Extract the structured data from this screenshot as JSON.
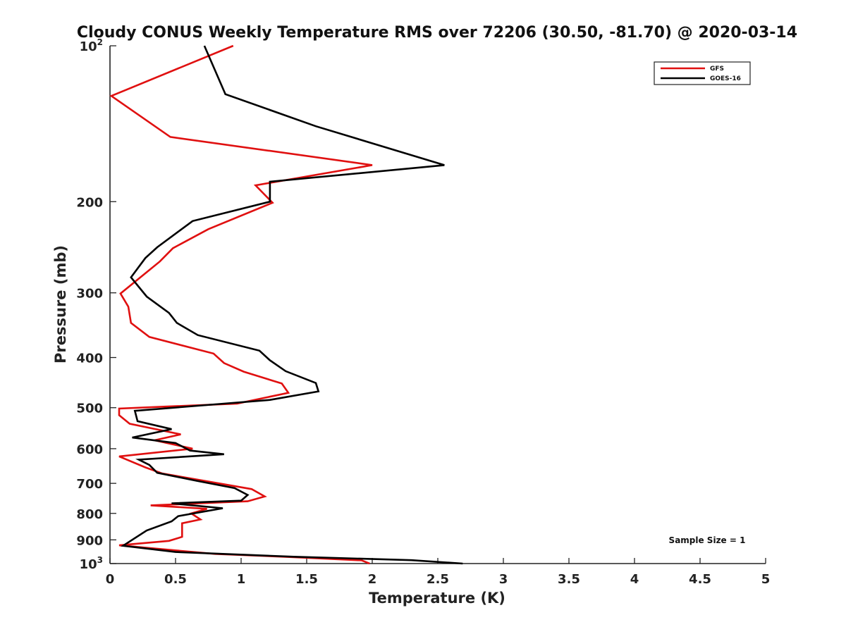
{
  "chart_data": {
    "type": "line",
    "title": "Cloudy CONUS Weekly Temperature RMS over 72206 (30.50, -81.70) @ 2020-03-14",
    "xlabel": "Temperature (K)",
    "ylabel": "Pressure (mb)",
    "xlim": [
      0,
      5
    ],
    "ylim": [
      100,
      1000
    ],
    "y_scale": "log",
    "y_reversed": true,
    "x_ticks": [
      "0",
      "0.5",
      "1",
      "1.5",
      "2",
      "2.5",
      "3",
      "3.5",
      "4",
      "4.5",
      "5"
    ],
    "y_ticks": [
      {
        "value": 100,
        "label": "10",
        "sup": "2"
      },
      {
        "value": 200,
        "label": "200"
      },
      {
        "value": 300,
        "label": "300"
      },
      {
        "value": 400,
        "label": "400"
      },
      {
        "value": 500,
        "label": "500"
      },
      {
        "value": 600,
        "label": "600"
      },
      {
        "value": 700,
        "label": "700"
      },
      {
        "value": 800,
        "label": "800"
      },
      {
        "value": 900,
        "label": "900"
      },
      {
        "value": 1000,
        "label": "10",
        "sup": "3"
      }
    ],
    "grid": false,
    "legend_position": "top-right",
    "annotation": "Sample Size = 1",
    "series": [
      {
        "name": "GFS",
        "color": "#e01010",
        "points": [
          [
            0.94,
            100
          ],
          [
            0.01,
            125
          ],
          [
            0.46,
            150
          ],
          [
            2.0,
            170
          ],
          [
            1.11,
            186
          ],
          [
            1.24,
            201
          ],
          [
            0.75,
            226
          ],
          [
            0.48,
            246
          ],
          [
            0.38,
            261
          ],
          [
            0.08,
            301
          ],
          [
            0.14,
            319
          ],
          [
            0.16,
            343
          ],
          [
            0.3,
            365
          ],
          [
            0.79,
            393
          ],
          [
            0.87,
            410
          ],
          [
            1.02,
            426
          ],
          [
            1.31,
            449
          ],
          [
            1.36,
            468
          ],
          [
            0.97,
            491
          ],
          [
            0.07,
            502
          ],
          [
            0.07,
            517
          ],
          [
            0.15,
            537
          ],
          [
            0.54,
            563
          ],
          [
            0.34,
            578
          ],
          [
            0.63,
            600
          ],
          [
            0.07,
            621
          ],
          [
            0.27,
            652
          ],
          [
            0.4,
            670
          ],
          [
            1.08,
            718
          ],
          [
            1.18,
            742
          ],
          [
            1.05,
            758
          ],
          [
            0.31,
            772
          ],
          [
            0.74,
            784
          ],
          [
            0.62,
            800
          ],
          [
            0.69,
            822
          ],
          [
            0.55,
            836
          ],
          [
            0.55,
            888
          ],
          [
            0.45,
            904
          ],
          [
            0.07,
            922
          ],
          [
            0.5,
            943
          ],
          [
            0.8,
            958
          ],
          [
            1.4,
            972
          ],
          [
            1.92,
            986
          ],
          [
            1.98,
            1000
          ]
        ]
      },
      {
        "name": "GOES-16",
        "color": "#000000",
        "points": [
          [
            0.72,
            100
          ],
          [
            0.88,
            124
          ],
          [
            1.57,
            143
          ],
          [
            2.55,
            170
          ],
          [
            1.22,
            183
          ],
          [
            1.22,
            200
          ],
          [
            0.63,
            218
          ],
          [
            0.36,
            245
          ],
          [
            0.27,
            257
          ],
          [
            0.16,
            280
          ],
          [
            0.28,
            305
          ],
          [
            0.45,
            328
          ],
          [
            0.51,
            343
          ],
          [
            0.67,
            362
          ],
          [
            1.14,
            388
          ],
          [
            1.22,
            405
          ],
          [
            1.34,
            425
          ],
          [
            1.57,
            448
          ],
          [
            1.59,
            465
          ],
          [
            1.22,
            483
          ],
          [
            0.19,
            507
          ],
          [
            0.21,
            531
          ],
          [
            0.47,
            550
          ],
          [
            0.17,
            571
          ],
          [
            0.5,
            585
          ],
          [
            0.61,
            605
          ],
          [
            0.87,
            615
          ],
          [
            0.22,
            630
          ],
          [
            0.3,
            645
          ],
          [
            0.36,
            668
          ],
          [
            0.66,
            692
          ],
          [
            0.95,
            715
          ],
          [
            1.05,
            737
          ],
          [
            1.0,
            756
          ],
          [
            0.47,
            765
          ],
          [
            0.86,
            782
          ],
          [
            0.52,
            810
          ],
          [
            0.47,
            829
          ],
          [
            0.28,
            863
          ],
          [
            0.12,
            917
          ],
          [
            0.1,
            924
          ],
          [
            0.5,
            950
          ],
          [
            1.4,
            970
          ],
          [
            2.3,
            985
          ],
          [
            2.69,
            1000
          ]
        ]
      }
    ]
  }
}
